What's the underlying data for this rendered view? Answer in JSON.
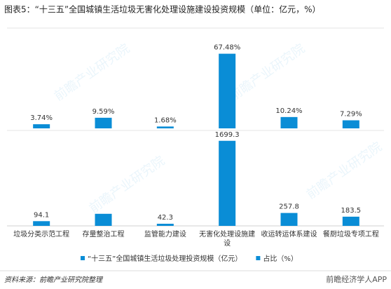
{
  "chart_data": {
    "type": "bar",
    "title": "图表5：“十三五”全国城镇生活垃圾无害化处理设施建设投资规模（单位：亿元，%）",
    "categories": [
      "垃圾分类示范工程",
      "存量整治工程",
      "监管能力建设",
      "无害化处理设施建设",
      "收运转运体系建设",
      "餐厨垃圾专项工程"
    ],
    "series": [
      {
        "name": "“十三五”全国城镇生活垃圾处理投资规模（亿元）",
        "color": "#0a8dd6",
        "values": [
          94.1,
          241,
          42.3,
          1699.3,
          257.8,
          183.5
        ],
        "value_labels": [
          "94.1",
          null,
          "42.3",
          "1699.3",
          "257.8",
          "183.5"
        ]
      },
      {
        "name": "占比（%）",
        "color": "#0a8dd6",
        "axis": "y2",
        "values": [
          3.74,
          9.59,
          1.68,
          67.48,
          10.24,
          7.29
        ],
        "value_labels": [
          "3.74%",
          "9.59%",
          "1.68%",
          "67.48%",
          "10.24%",
          "7.29%"
        ]
      }
    ],
    "ylim": [
      0,
      1850
    ],
    "y2lim": [
      0,
      78
    ],
    "source": "资料来源：前瞻产业研究院整理",
    "watermark": "前瞻产业研究院",
    "logo": "前瞻经济学人APP"
  }
}
